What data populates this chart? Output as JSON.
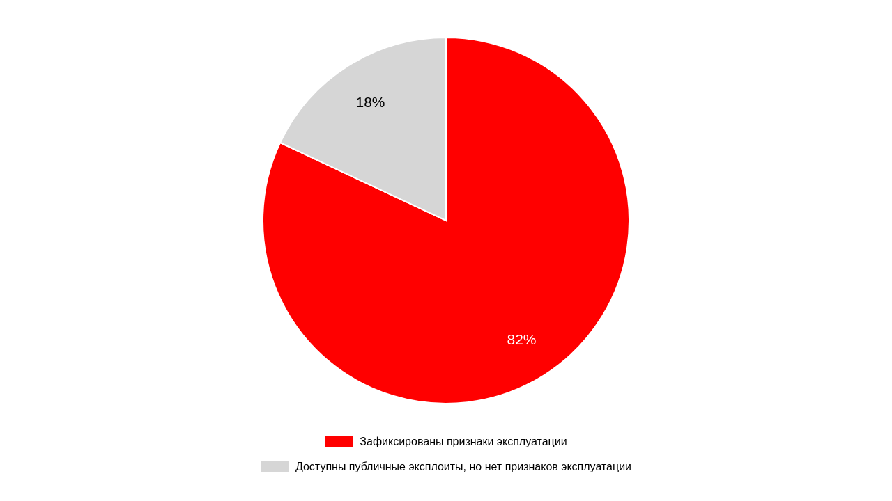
{
  "chart_data": {
    "type": "pie",
    "categories": [
      "Зафиксированы признаки эксплуатации",
      "Доступны публичные эксплоиты, но нет признаков эксплуатации"
    ],
    "values": [
      82,
      18
    ],
    "colors": [
      "#ff0000",
      "#d6d6d6"
    ],
    "value_labels": [
      "82%",
      "18%"
    ],
    "legend": "bottom"
  }
}
